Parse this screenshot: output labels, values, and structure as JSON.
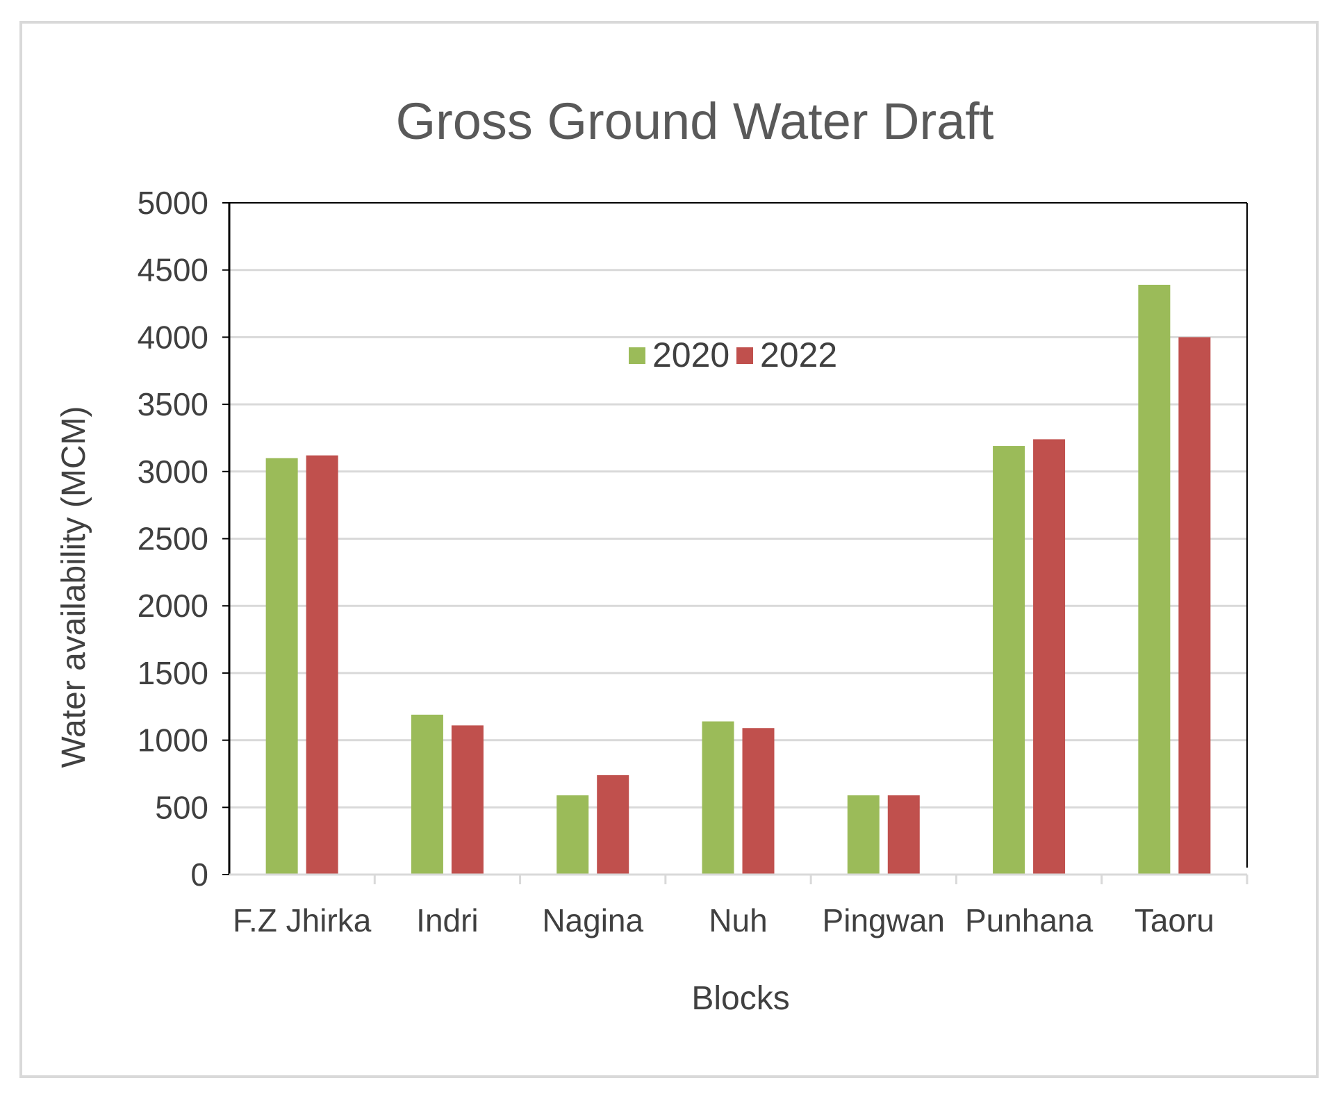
{
  "chart_data": {
    "type": "bar",
    "title": "Gross Ground Water Draft",
    "xlabel": "Blocks",
    "ylabel": "Water availability (MCM)",
    "categories": [
      "F.Z Jhirka",
      "Indri",
      "Nagina",
      "Nuh",
      "Pingwan",
      "Punhana",
      "Taoru"
    ],
    "series": [
      {
        "name": "2020",
        "color": "#9bbb59",
        "values": [
          3100,
          1190,
          590,
          1140,
          590,
          3190,
          4390
        ]
      },
      {
        "name": "2022",
        "color": "#c0504d",
        "values": [
          3120,
          1110,
          740,
          1090,
          590,
          3240,
          4000
        ]
      }
    ],
    "ylim": [
      0,
      5000
    ],
    "yticks": [
      0,
      500,
      1000,
      1500,
      2000,
      2500,
      3000,
      3500,
      4000,
      4500,
      5000
    ],
    "grid": true,
    "legend_position": "top-center"
  }
}
